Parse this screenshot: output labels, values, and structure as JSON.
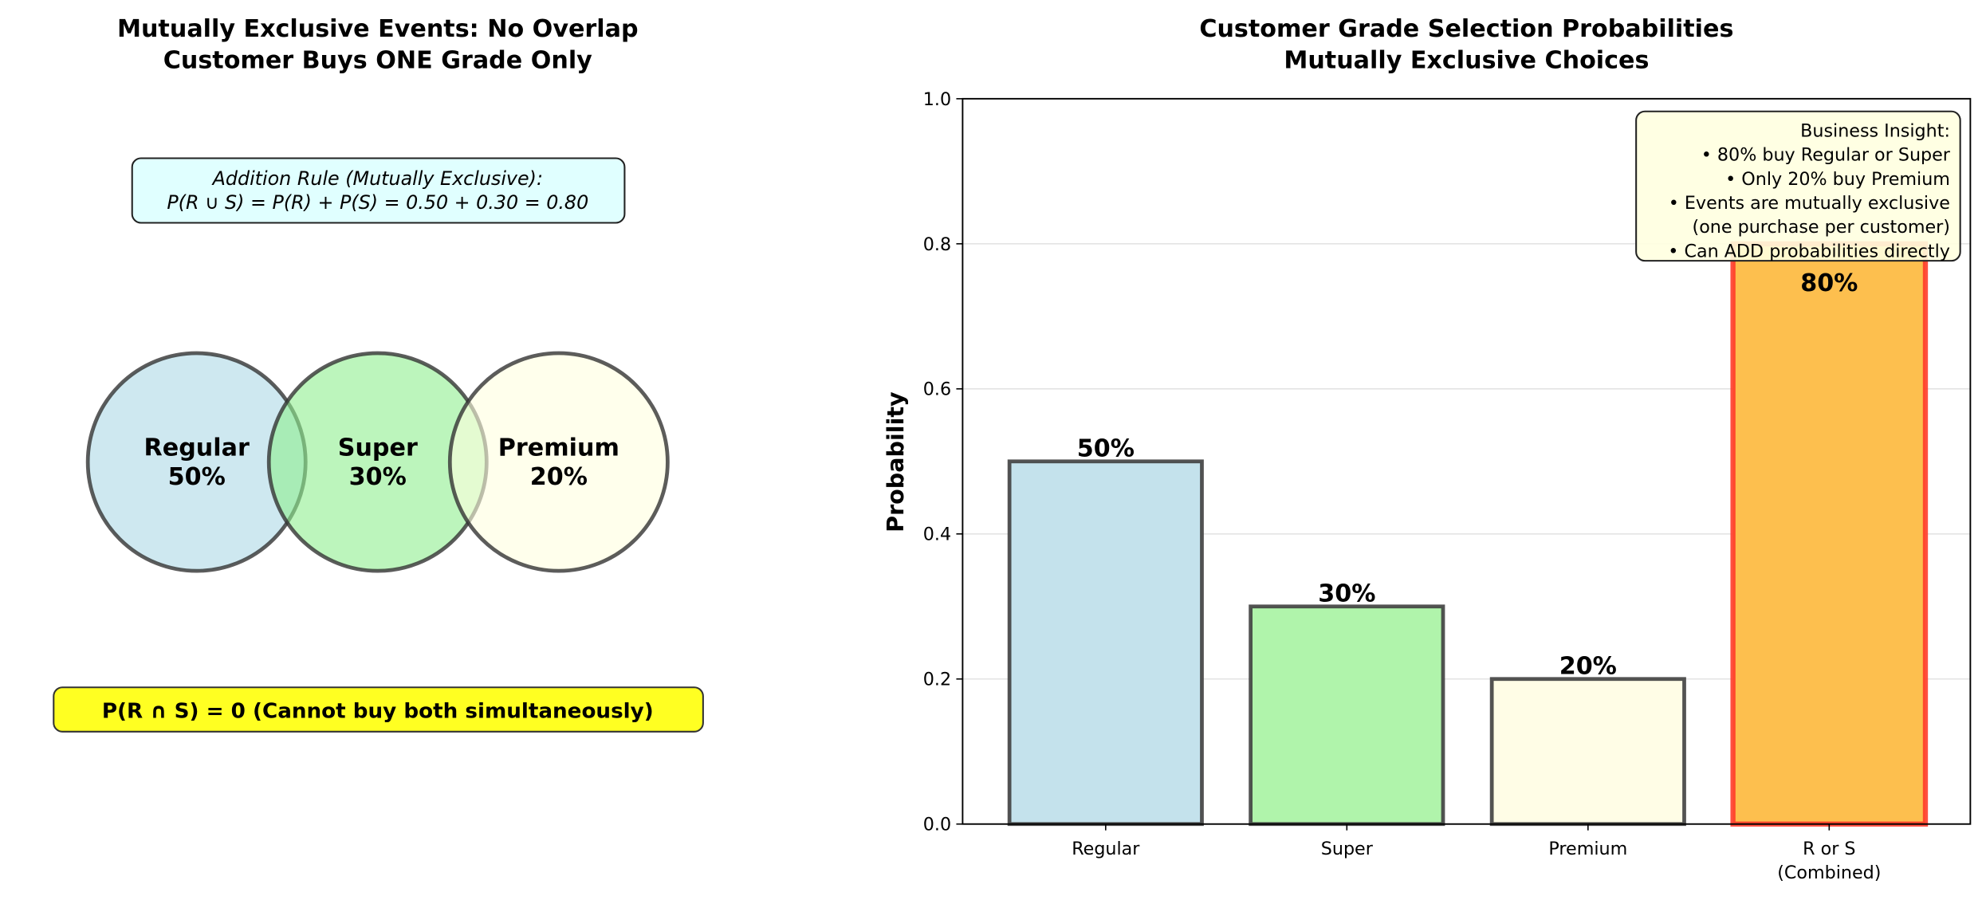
{
  "left_panel": {
    "title_line1": "Mutually Exclusive Events: No Overlap",
    "title_line2": "Customer Buys ONE Grade Only",
    "rule_box": {
      "line1": "Addition Rule (Mutually Exclusive):",
      "line2": "P(R ∪ S) = P(R) + P(S) = 0.50 + 0.30 = 0.80"
    },
    "circles": [
      {
        "name": "Regular",
        "pct": "50%",
        "color": "#add8e6"
      },
      {
        "name": "Super",
        "pct": "30%",
        "color": "#90ee90"
      },
      {
        "name": "Premium",
        "pct": "20%",
        "color": "#ffffe0"
      }
    ],
    "intersection_note": "P(R ∩ S) = 0  (Cannot buy both simultaneously)"
  },
  "chart_data": {
    "type": "bar",
    "title": "Customer Grade Selection Probabilities",
    "subtitle": "Mutually Exclusive Choices",
    "xlabel": "",
    "ylabel": "Probability",
    "ylim": [
      0,
      1.0
    ],
    "yticks": [
      "0.0",
      "0.2",
      "0.4",
      "0.6",
      "0.8",
      "1.0"
    ],
    "grid": "y",
    "categories": [
      "Regular",
      "Super",
      "Premium",
      "R or S"
    ],
    "category_sublabels": [
      "",
      "",
      "",
      "(Combined)"
    ],
    "values": [
      0.5,
      0.3,
      0.2,
      0.8
    ],
    "data_labels": [
      "50%",
      "30%",
      "20%",
      "80%"
    ],
    "colors": [
      "#c4e2ec",
      "#b0f4ab",
      "#fffde6",
      "#fdbf4e"
    ],
    "edge_colors": [
      "#404040",
      "#404040",
      "#404040",
      "#ff3b2a"
    ],
    "annotation": {
      "placement": "top-right",
      "lines": [
        "Business Insight:",
        "• 80% buy Regular or Super",
        "• Only 20% buy Premium",
        "• Events are mutually exclusive",
        "(one purchase per customer)",
        "• Can ADD probabilities directly"
      ]
    }
  }
}
